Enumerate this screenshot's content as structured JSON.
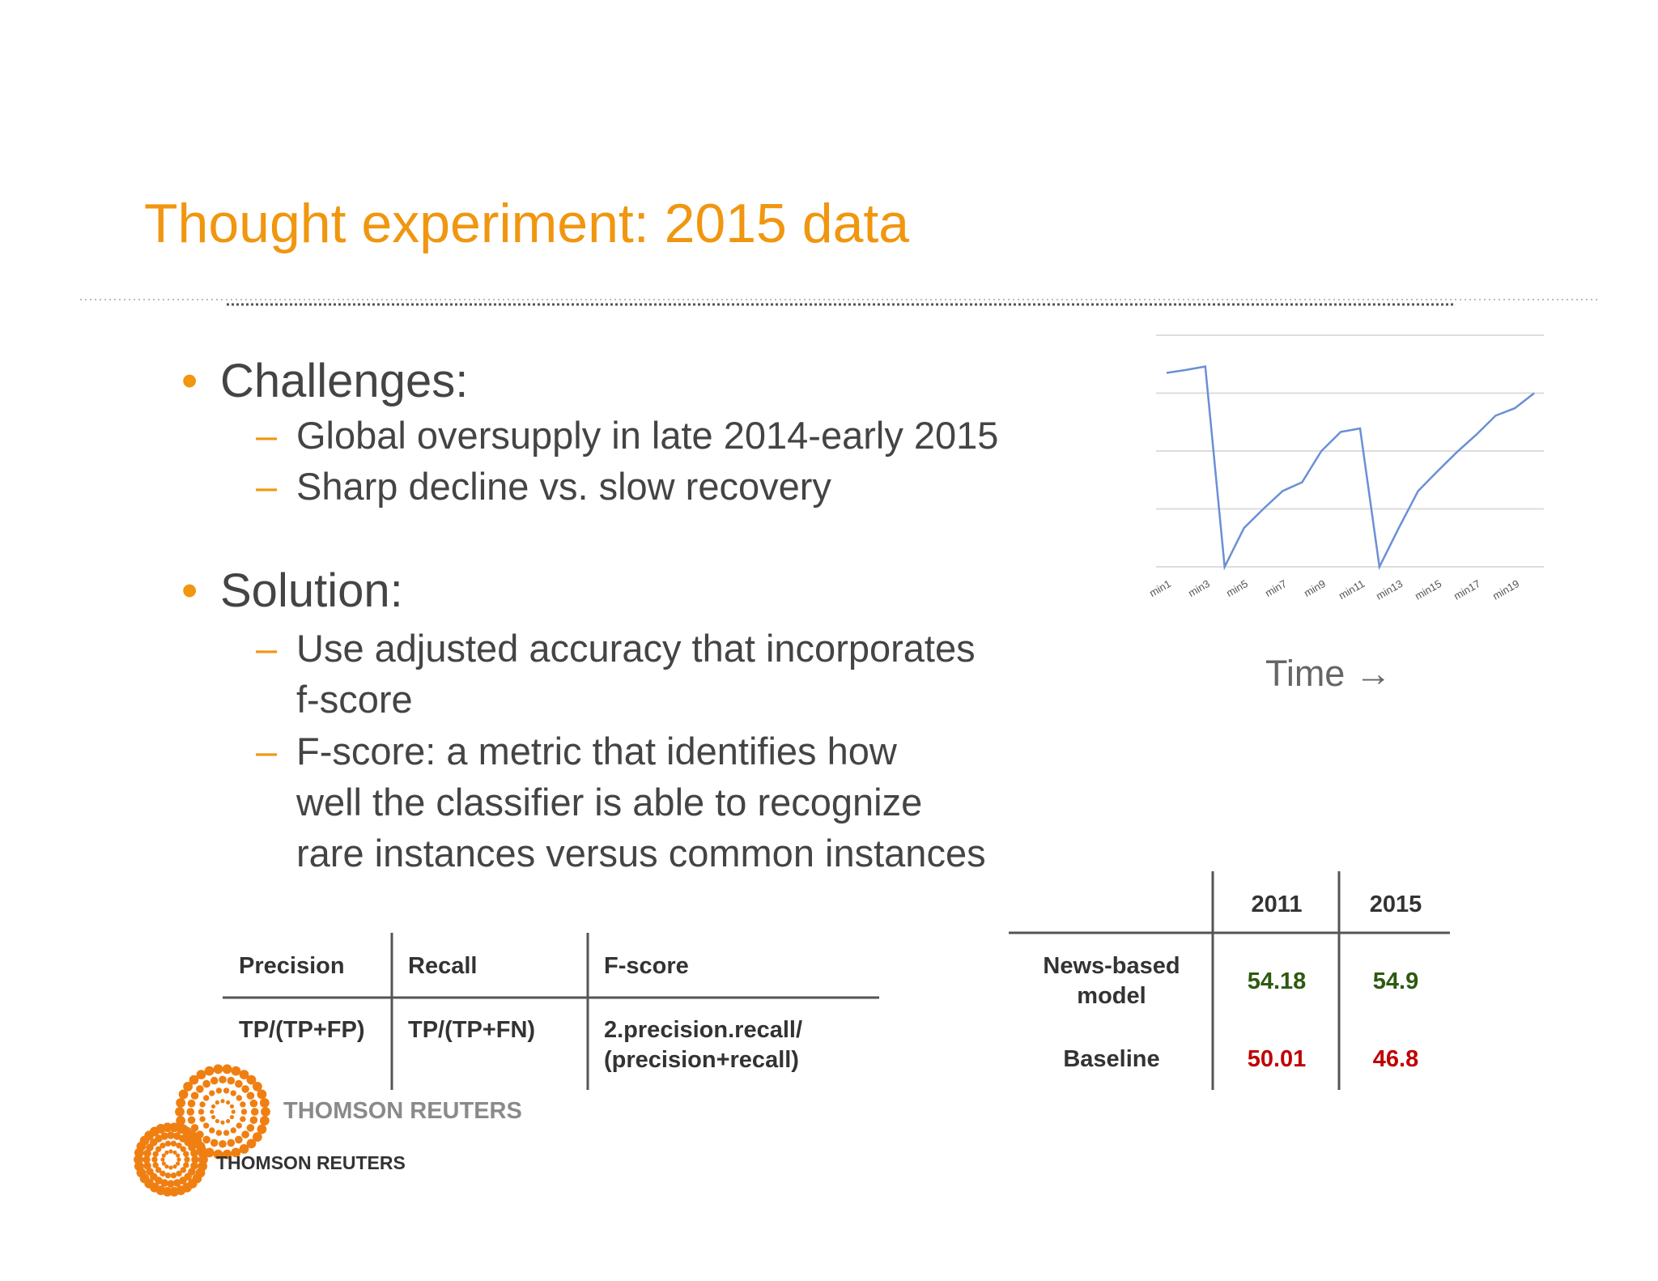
{
  "title": "Thought experiment: 2015 data",
  "bullets": [
    {
      "text": "Challenges:",
      "items": [
        "Global oversupply in late 2014-early 2015",
        "Sharp decline vs. slow recovery"
      ]
    },
    {
      "text": "Solution:",
      "items": [
        "Use adjusted accuracy that incorporates\nf-score",
        "F-score: a metric that identifies how\nwell the classifier is able to recognize\nrare instances versus common instances"
      ]
    }
  ],
  "bullet_marks": {
    "bullet": "•",
    "dash": "–"
  },
  "chart_data": {
    "type": "line",
    "categories": [
      "min1",
      null,
      "min3",
      null,
      "min5",
      null,
      "min7",
      null,
      "min9",
      null,
      "min11",
      null,
      "min13",
      null,
      "min15",
      null,
      "min17",
      null,
      "min19",
      null
    ],
    "values": [
      3.35,
      3.4,
      3.46,
      0,
      0.67,
      1.0,
      1.31,
      1.46,
      2.0,
      2.33,
      2.39,
      0,
      0.67,
      1.31,
      1.65,
      1.98,
      2.28,
      2.61,
      2.74,
      3.0
    ],
    "color": "#6a8fd6",
    "ylim": [
      0,
      4
    ],
    "yticks": [
      0,
      1,
      2,
      3,
      4
    ],
    "grid": true,
    "x_label": "Time →"
  },
  "metrics_table": {
    "header": [
      "Precision",
      "Recall",
      "F-score"
    ],
    "rows": [
      [
        "TP/(TP+FP)",
        "TP/(TP+FN)",
        "2.precision.recall/\n(precision+recall)"
      ]
    ]
  },
  "results_table": {
    "columns": [
      "2011",
      "2015"
    ],
    "rows": [
      {
        "label": "News-based\nmodel",
        "values": [
          54.18,
          54.9
        ],
        "color": "#2e5a10"
      },
      {
        "label": "Baseline",
        "values": [
          50.01,
          46.8
        ],
        "color": "#c00000"
      }
    ]
  },
  "logos": [
    "THOMSON REUTERS",
    "THOMSON REUTERS"
  ]
}
